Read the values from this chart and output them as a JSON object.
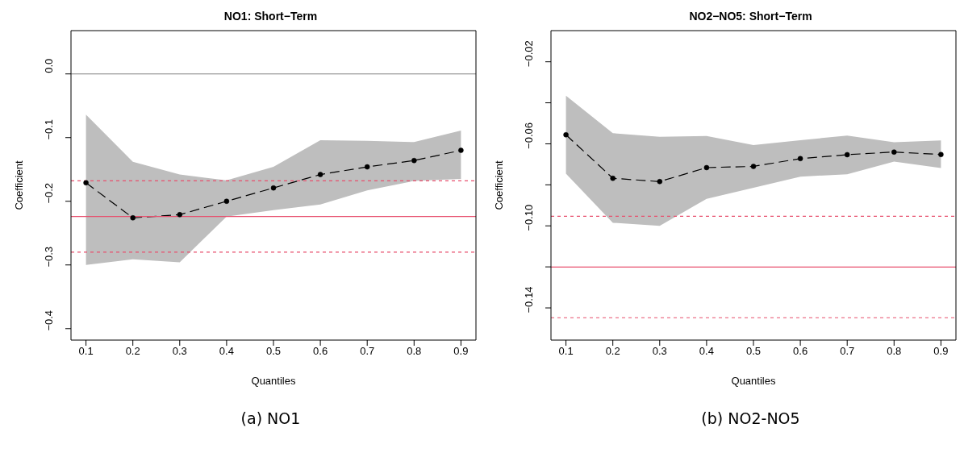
{
  "chart_data": [
    {
      "type": "line",
      "title": "NO1: Short−Term",
      "xlabel": "Quantiles",
      "ylabel": "Coefficient",
      "x": [
        0.1,
        0.2,
        0.3,
        0.4,
        0.5,
        0.6,
        0.7,
        0.8,
        0.9
      ],
      "series": [
        {
          "color": "#000000",
          "values": [
            -0.171,
            -0.226,
            -0.221,
            -0.2,
            -0.179,
            -0.158,
            -0.146,
            -0.136,
            -0.12
          ],
          "lower": [
            -0.3,
            -0.291,
            -0.296,
            -0.224,
            -0.214,
            -0.205,
            -0.183,
            -0.168,
            -0.165
          ],
          "upper": [
            -0.064,
            -0.138,
            -0.158,
            -0.167,
            -0.146,
            -0.104,
            -0.105,
            -0.107,
            -0.089
          ]
        }
      ],
      "xlim": [
        0.068,
        0.932
      ],
      "xticks": [
        0.1,
        0.2,
        0.3,
        0.4,
        0.5,
        0.6,
        0.7,
        0.8,
        0.9
      ],
      "ylim": [
        -0.418,
        0.068
      ],
      "yticks": [
        {
          "value": -0.4,
          "label": "−0.4"
        },
        {
          "value": -0.3,
          "label": "−0.3"
        },
        {
          "value": -0.2,
          "label": "−0.2"
        },
        {
          "value": -0.1,
          "label": "−0.1"
        },
        {
          "value": 0,
          "label": "0.0"
        }
      ],
      "ref_lines": [
        {
          "axis": "y",
          "value": 0,
          "color": "#808080",
          "line_style": "solid"
        },
        {
          "axis": "y",
          "value": -0.224,
          "color": "#e8506e",
          "line_style": "solid"
        },
        {
          "axis": "y",
          "value": -0.168,
          "color": "#e8506e",
          "line_style": "dashed"
        },
        {
          "axis": "y",
          "value": -0.28,
          "color": "#e8506e",
          "line_style": "dashed"
        }
      ],
      "marker": "circle",
      "line_style": "dashed",
      "grid": false,
      "legend": false,
      "annotations": [
        "(a) NO1"
      ]
    },
    {
      "type": "line",
      "title": "NO2−NO5: Short−Term",
      "xlabel": "Quantiles",
      "ylabel": "Coefficient",
      "x": [
        0.1,
        0.2,
        0.3,
        0.4,
        0.5,
        0.6,
        0.7,
        0.8,
        0.9
      ],
      "series": [
        {
          "color": "#000000",
          "values": [
            -0.0556,
            -0.0768,
            -0.0784,
            -0.0716,
            -0.071,
            -0.0672,
            -0.0653,
            -0.064,
            -0.0652
          ],
          "lower": [
            -0.0746,
            -0.0985,
            -0.1,
            -0.0868,
            -0.0814,
            -0.076,
            -0.0748,
            -0.0687,
            -0.0718
          ],
          "upper": [
            -0.0365,
            -0.0548,
            -0.0566,
            -0.0562,
            -0.0606,
            -0.0582,
            -0.056,
            -0.0592,
            -0.0583
          ]
        }
      ],
      "xlim": [
        0.068,
        0.932
      ],
      "xticks": [
        0.1,
        0.2,
        0.3,
        0.4,
        0.5,
        0.6,
        0.7,
        0.8,
        0.9
      ],
      "ylim": [
        -0.1557,
        -0.0048
      ],
      "yticks": [
        {
          "value": -0.14,
          "label": "−0.14"
        },
        {
          "value": -0.12,
          "label": null
        },
        {
          "value": -0.1,
          "label": "−0.10"
        },
        {
          "value": -0.08,
          "label": null
        },
        {
          "value": -0.06,
          "label": "−0.06"
        },
        {
          "value": -0.04,
          "label": null
        },
        {
          "value": -0.02,
          "label": "−0.02"
        }
      ],
      "ref_lines": [
        {
          "axis": "y",
          "value": -0.1201,
          "color": "#e8506e",
          "line_style": "solid"
        },
        {
          "axis": "y",
          "value": -0.0953,
          "color": "#e8506e",
          "line_style": "dashed"
        },
        {
          "axis": "y",
          "value": -0.1448,
          "color": "#e8506e",
          "line_style": "dashed"
        }
      ],
      "marker": "circle",
      "line_style": "dashed",
      "grid": false,
      "legend": false,
      "annotations": [
        "(b) NO2-NO5"
      ]
    }
  ]
}
